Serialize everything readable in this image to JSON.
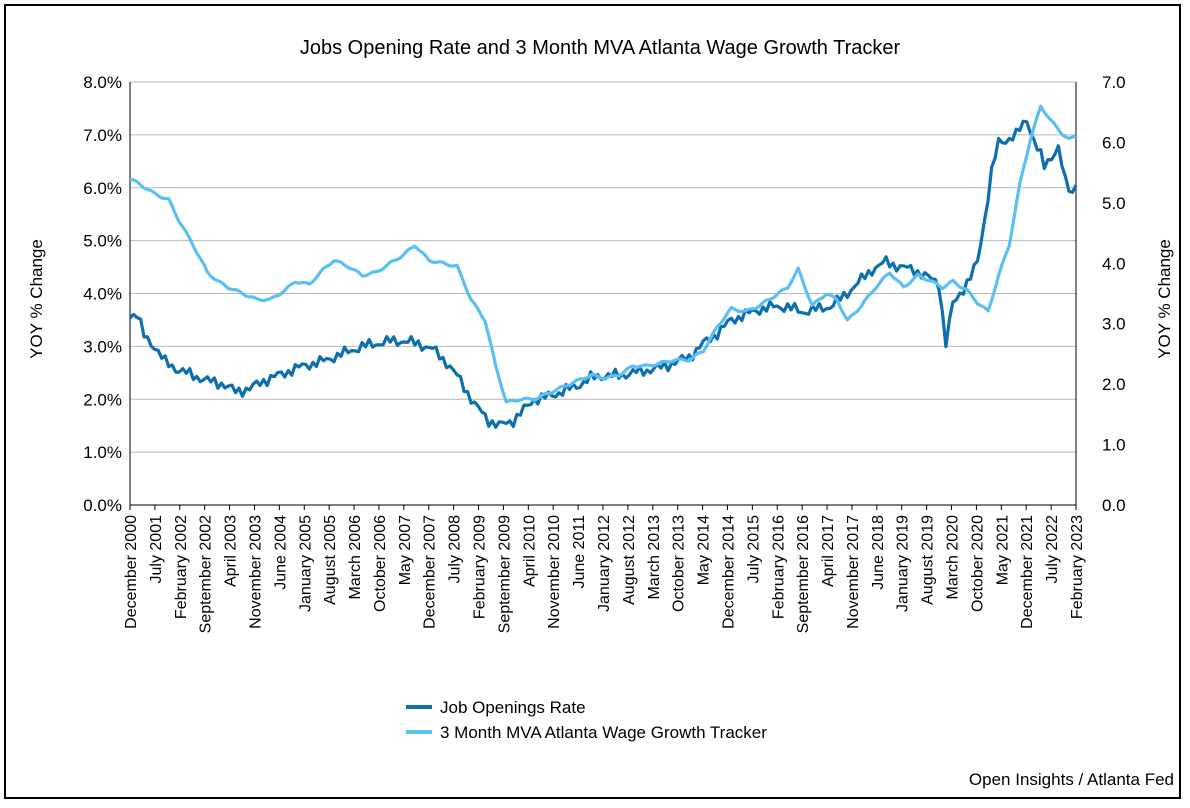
{
  "chart_data": {
    "type": "line",
    "title": "Jobs Opening Rate and 3 Month MVA Atlanta Wage Growth Tracker",
    "ylabel_left": "YOY % Change",
    "ylabel_right": "YOY % Change",
    "source": "Open Insights / Atlanta Fed",
    "y_left": {
      "ticks": [
        "0.0%",
        "1.0%",
        "2.0%",
        "3.0%",
        "4.0%",
        "5.0%",
        "6.0%",
        "7.0%",
        "8.0%"
      ],
      "lim": [
        0,
        8
      ]
    },
    "y_right": {
      "ticks": [
        "0.0",
        "1.0",
        "2.0",
        "3.0",
        "4.0",
        "5.0",
        "6.0",
        "7.0"
      ],
      "lim": [
        0,
        7
      ]
    },
    "x_ticks": [
      "December 2000",
      "July 2001",
      "February 2002",
      "September 2002",
      "April 2003",
      "November 2003",
      "June 2004",
      "January 2005",
      "August 2005",
      "March 2006",
      "October 2006",
      "May 2007",
      "December 2007",
      "July 2008",
      "February 2009",
      "September 2009",
      "April 2010",
      "November 2010",
      "June 2011",
      "January 2012",
      "August 2012",
      "March 2013",
      "October 2013",
      "May 2014",
      "December 2014",
      "July 2015",
      "February 2016",
      "September 2016",
      "April 2017",
      "November 2017",
      "June 2018",
      "January 2019",
      "August 2019",
      "March 2020",
      "October 2020",
      "May 2021",
      "December 2021",
      "July 2022",
      "February 2023"
    ],
    "grid": true,
    "legend_position": "bottom",
    "series": [
      {
        "name": "Job Openings Rate",
        "axis": "left",
        "color": "#0d6fae",
        "points": [
          [
            "2000-12",
            3.6
          ],
          [
            "2001-02",
            3.6
          ],
          [
            "2001-04",
            3.2
          ],
          [
            "2001-07",
            3.0
          ],
          [
            "2001-10",
            2.7
          ],
          [
            "2002-02",
            2.55
          ],
          [
            "2002-06",
            2.45
          ],
          [
            "2002-10",
            2.35
          ],
          [
            "2003-02",
            2.3
          ],
          [
            "2003-06",
            2.15
          ],
          [
            "2003-10",
            2.2
          ],
          [
            "2004-02",
            2.35
          ],
          [
            "2004-06",
            2.45
          ],
          [
            "2004-10",
            2.55
          ],
          [
            "2005-02",
            2.65
          ],
          [
            "2005-06",
            2.7
          ],
          [
            "2005-10",
            2.8
          ],
          [
            "2006-02",
            2.9
          ],
          [
            "2006-06",
            3.0
          ],
          [
            "2006-10",
            3.05
          ],
          [
            "2007-02",
            3.1
          ],
          [
            "2007-06",
            3.1
          ],
          [
            "2007-10",
            3.05
          ],
          [
            "2008-02",
            2.95
          ],
          [
            "2008-06",
            2.7
          ],
          [
            "2008-10",
            2.35
          ],
          [
            "2009-02",
            1.9
          ],
          [
            "2009-06",
            1.6
          ],
          [
            "2009-09",
            1.5
          ],
          [
            "2010-01",
            1.6
          ],
          [
            "2010-04",
            1.8
          ],
          [
            "2010-07",
            2.0
          ],
          [
            "2010-11",
            2.05
          ],
          [
            "2011-03",
            2.15
          ],
          [
            "2011-07",
            2.25
          ],
          [
            "2011-11",
            2.4
          ],
          [
            "2012-03",
            2.45
          ],
          [
            "2012-07",
            2.45
          ],
          [
            "2012-11",
            2.5
          ],
          [
            "2013-03",
            2.55
          ],
          [
            "2013-07",
            2.6
          ],
          [
            "2013-11",
            2.7
          ],
          [
            "2014-03",
            2.8
          ],
          [
            "2014-07",
            3.05
          ],
          [
            "2014-11",
            3.25
          ],
          [
            "2015-03",
            3.5
          ],
          [
            "2015-07",
            3.6
          ],
          [
            "2015-11",
            3.7
          ],
          [
            "2016-03",
            3.75
          ],
          [
            "2016-07",
            3.75
          ],
          [
            "2016-11",
            3.65
          ],
          [
            "2017-03",
            3.7
          ],
          [
            "2017-07",
            3.75
          ],
          [
            "2017-11",
            3.95
          ],
          [
            "2018-03",
            4.2
          ],
          [
            "2018-07",
            4.45
          ],
          [
            "2018-11",
            4.6
          ],
          [
            "2019-03",
            4.5
          ],
          [
            "2019-07",
            4.45
          ],
          [
            "2019-11",
            4.3
          ],
          [
            "2020-02",
            4.2
          ],
          [
            "2020-04",
            3.05
          ],
          [
            "2020-06",
            3.8
          ],
          [
            "2020-08",
            4.0
          ],
          [
            "2020-11",
            4.3
          ],
          [
            "2021-01",
            4.6
          ],
          [
            "2021-03",
            5.4
          ],
          [
            "2021-05",
            6.3
          ],
          [
            "2021-07",
            6.85
          ],
          [
            "2021-09",
            6.9
          ],
          [
            "2021-12",
            7.0
          ],
          [
            "2022-03",
            7.3
          ],
          [
            "2022-05",
            6.9
          ],
          [
            "2022-07",
            6.6
          ],
          [
            "2022-08",
            6.4
          ],
          [
            "2022-10",
            6.6
          ],
          [
            "2022-12",
            6.75
          ],
          [
            "2023-02",
            6.1
          ],
          [
            "2023-04",
            5.9
          ],
          [
            "2023-05",
            6.05
          ]
        ]
      },
      {
        "name": "3 Month MVA Atlanta Wage Growth Tracker",
        "axis": "right",
        "color": "#5bbff2",
        "points": [
          [
            "2000-12",
            5.4
          ],
          [
            "2001-03",
            5.3
          ],
          [
            "2001-07",
            5.15
          ],
          [
            "2001-11",
            5.05
          ],
          [
            "2002-02",
            4.7
          ],
          [
            "2002-06",
            4.3
          ],
          [
            "2002-10",
            3.85
          ],
          [
            "2003-01",
            3.7
          ],
          [
            "2003-04",
            3.6
          ],
          [
            "2003-08",
            3.5
          ],
          [
            "2003-12",
            3.4
          ],
          [
            "2004-04",
            3.4
          ],
          [
            "2004-08",
            3.55
          ],
          [
            "2004-11",
            3.7
          ],
          [
            "2005-03",
            3.65
          ],
          [
            "2005-07",
            3.9
          ],
          [
            "2005-10",
            4.05
          ],
          [
            "2006-02",
            3.95
          ],
          [
            "2006-06",
            3.8
          ],
          [
            "2006-10",
            3.85
          ],
          [
            "2007-02",
            4.0
          ],
          [
            "2007-06",
            4.15
          ],
          [
            "2007-09",
            4.3
          ],
          [
            "2008-01",
            4.05
          ],
          [
            "2008-05",
            4.0
          ],
          [
            "2008-09",
            3.95
          ],
          [
            "2009-01",
            3.4
          ],
          [
            "2009-05",
            3.05
          ],
          [
            "2009-08",
            2.3
          ],
          [
            "2009-11",
            1.7
          ],
          [
            "2010-03",
            1.75
          ],
          [
            "2010-07",
            1.75
          ],
          [
            "2010-11",
            1.85
          ],
          [
            "2011-03",
            1.95
          ],
          [
            "2011-07",
            2.05
          ],
          [
            "2011-11",
            2.15
          ],
          [
            "2012-03",
            2.1
          ],
          [
            "2012-07",
            2.15
          ],
          [
            "2012-11",
            2.3
          ],
          [
            "2013-03",
            2.3
          ],
          [
            "2013-07",
            2.35
          ],
          [
            "2013-11",
            2.4
          ],
          [
            "2014-03",
            2.4
          ],
          [
            "2014-07",
            2.55
          ],
          [
            "2014-11",
            2.95
          ],
          [
            "2015-03",
            3.25
          ],
          [
            "2015-07",
            3.2
          ],
          [
            "2015-11",
            3.3
          ],
          [
            "2016-03",
            3.45
          ],
          [
            "2016-07",
            3.6
          ],
          [
            "2016-10",
            3.9
          ],
          [
            "2017-02",
            3.3
          ],
          [
            "2017-06",
            3.5
          ],
          [
            "2017-09",
            3.4
          ],
          [
            "2017-12",
            3.05
          ],
          [
            "2018-04",
            3.3
          ],
          [
            "2018-08",
            3.6
          ],
          [
            "2018-12",
            3.85
          ],
          [
            "2019-04",
            3.6
          ],
          [
            "2019-08",
            3.8
          ],
          [
            "2019-12",
            3.7
          ],
          [
            "2020-03",
            3.6
          ],
          [
            "2020-06",
            3.7
          ],
          [
            "2020-10",
            3.55
          ],
          [
            "2021-01",
            3.35
          ],
          [
            "2021-04",
            3.2
          ],
          [
            "2021-07",
            3.8
          ],
          [
            "2021-10",
            4.3
          ],
          [
            "2022-01",
            5.3
          ],
          [
            "2022-04",
            6.05
          ],
          [
            "2022-07",
            6.6
          ],
          [
            "2022-10",
            6.35
          ],
          [
            "2023-01",
            6.15
          ],
          [
            "2023-03",
            6.05
          ],
          [
            "2023-05",
            6.1
          ]
        ]
      }
    ]
  }
}
